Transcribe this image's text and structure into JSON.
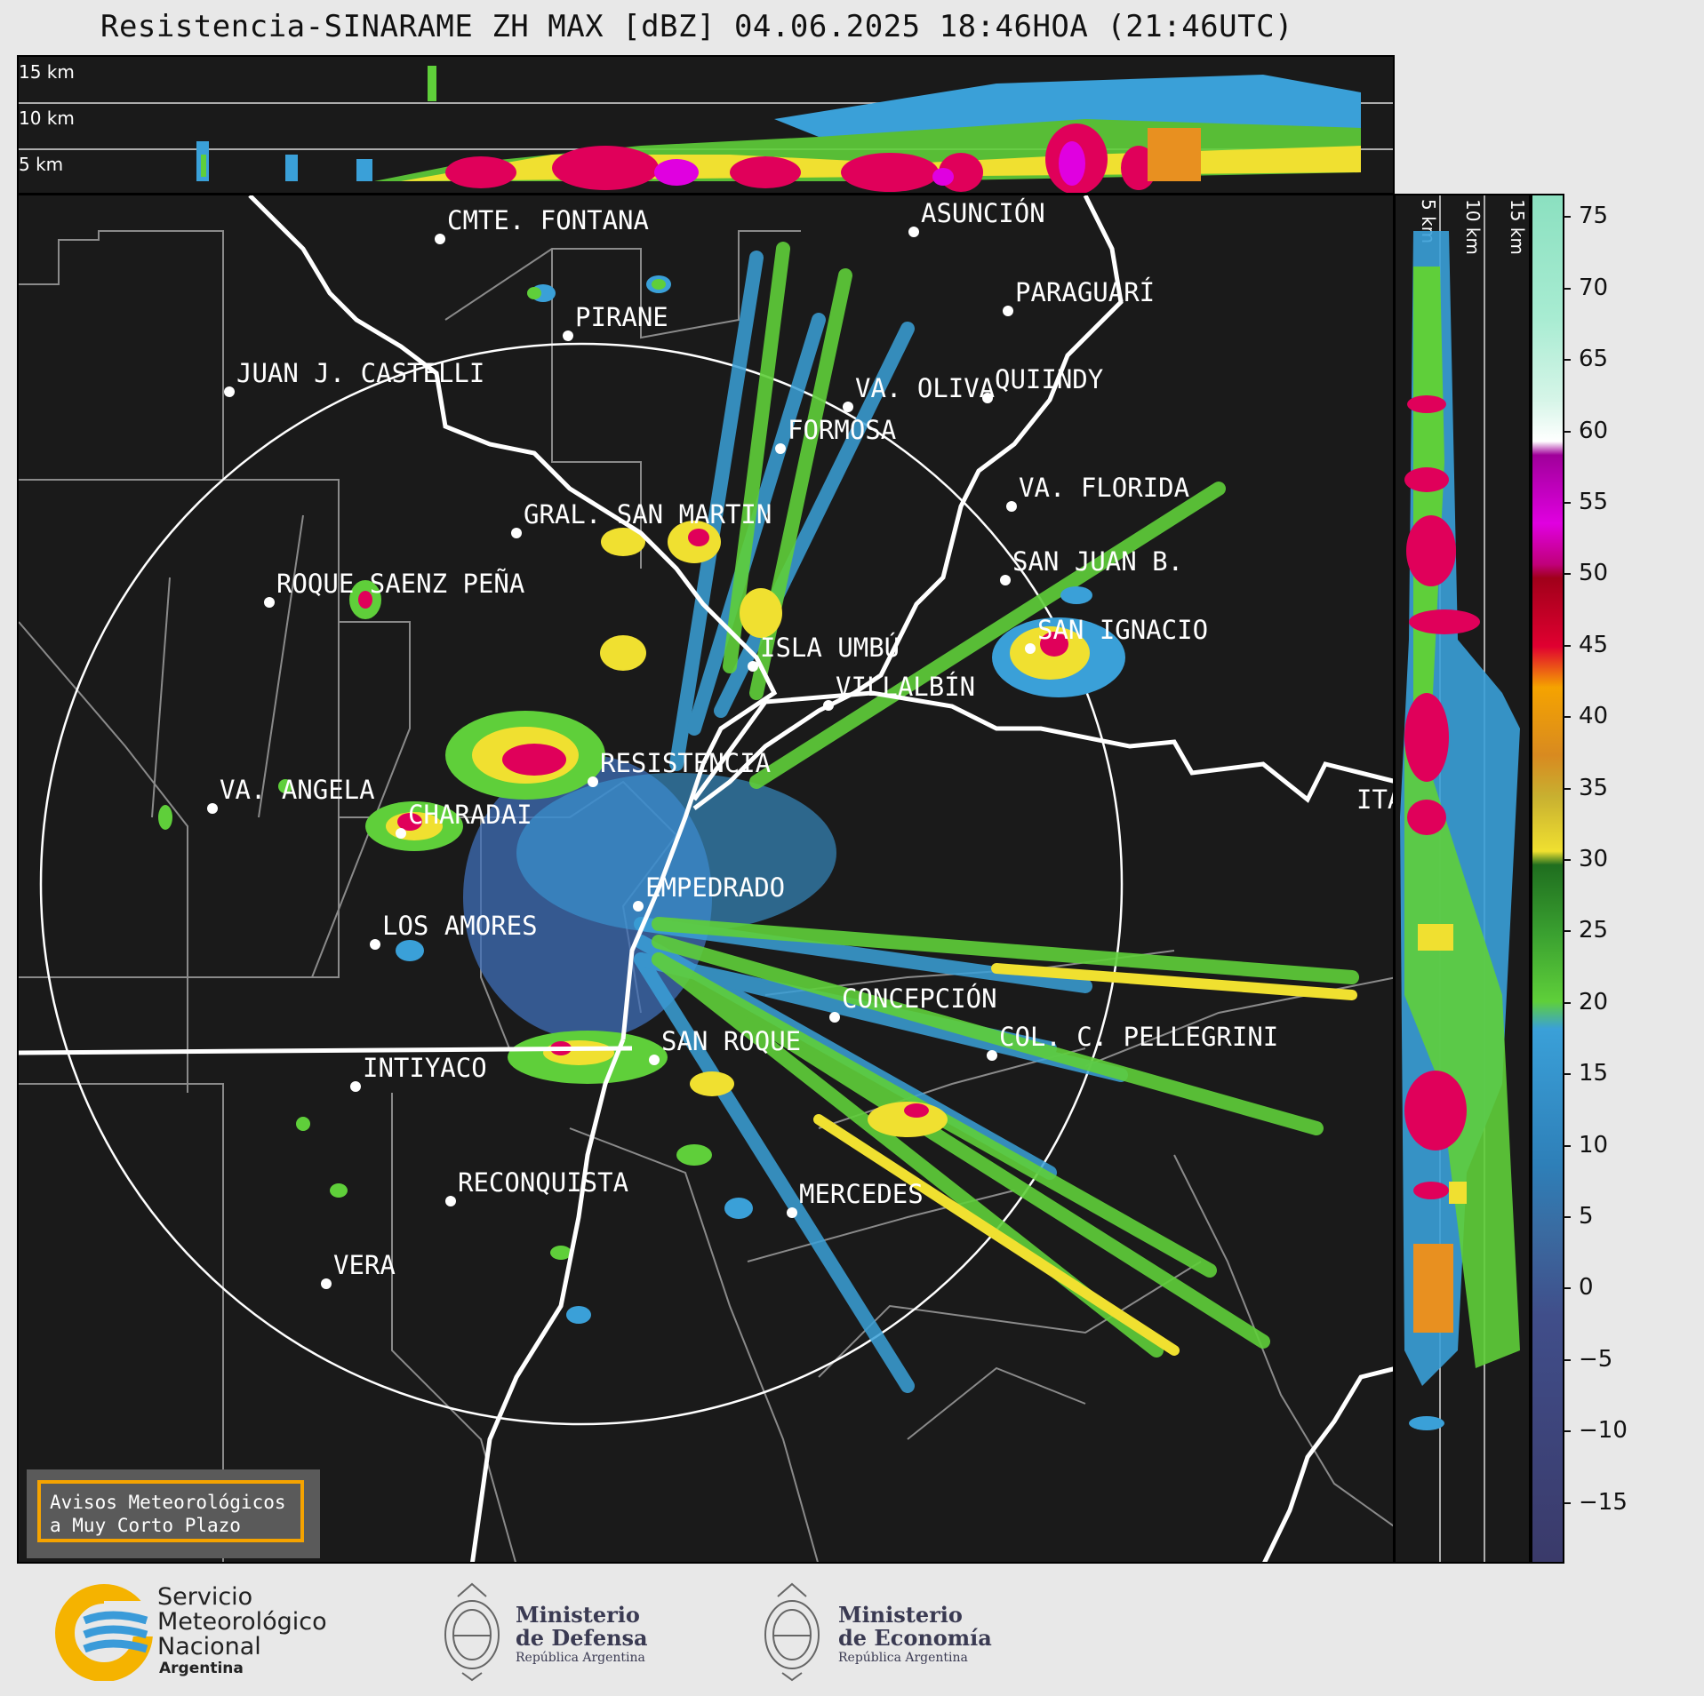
{
  "title": "Resistencia-SINARAME ZH MAX [dBZ] 04.06.2025 18:46HOA (21:46UTC)",
  "top_panel": {
    "height_labels": [
      "15 km",
      "10 km",
      "5 km"
    ]
  },
  "side_panel": {
    "height_labels": [
      "5 km",
      "10 km",
      "15 km"
    ]
  },
  "colorbar": {
    "ticks": [
      "75",
      "70",
      "65",
      "60",
      "55",
      "50",
      "45",
      "40",
      "35",
      "30",
      "25",
      "20",
      "15",
      "10",
      "5",
      "0",
      "−5",
      "−10",
      "−15"
    ]
  },
  "cities": [
    {
      "name": "CMTE. FONTANA"
    },
    {
      "name": "ASUNCIÓN"
    },
    {
      "name": "PIRANE"
    },
    {
      "name": "PARAGUARÍ"
    },
    {
      "name": "JUAN J. CASTELLI"
    },
    {
      "name": "VA. OLIVA"
    },
    {
      "name": "QUIINDY"
    },
    {
      "name": "FORMOSA"
    },
    {
      "name": "VA. FLORIDA"
    },
    {
      "name": "GRAL. SAN MARTIN"
    },
    {
      "name": "SAN JUAN B."
    },
    {
      "name": "ROQUE SAENZ PEÑA"
    },
    {
      "name": "SAN IGNACIO"
    },
    {
      "name": "ISLA UMBÚ"
    },
    {
      "name": "VILLALBÍN"
    },
    {
      "name": "RESISTENCIA"
    },
    {
      "name": "ITÁ"
    },
    {
      "name": "VA. ANGELA"
    },
    {
      "name": "CHARADAI"
    },
    {
      "name": "EMPEDRADO"
    },
    {
      "name": "LOS AMORES"
    },
    {
      "name": "CONCEPCIÓN"
    },
    {
      "name": "COL. C. PELLEGRINI"
    },
    {
      "name": "SAN ROQUE"
    },
    {
      "name": "INTIYACO"
    },
    {
      "name": "RECONQUISTA"
    },
    {
      "name": "MERCEDES"
    },
    {
      "name": "VERA"
    }
  ],
  "notice": {
    "line1": "Avisos Meteorológicos",
    "line2": "a Muy Corto Plazo"
  },
  "logos": {
    "smn": {
      "line1": "Servicio",
      "line2": "Meteorológico",
      "line3": "Nacional",
      "line4": "Argentina"
    },
    "defensa": {
      "line1": "Ministerio",
      "line2": "de Defensa",
      "line3": "República Argentina"
    },
    "economia": {
      "line1": "Ministerio",
      "line2": "de Economía",
      "line3": "República Argentina"
    }
  },
  "colors": {
    "background": "#1a1a1a",
    "accent": "#f5a300",
    "smn_blue": "#3a9bd9"
  }
}
